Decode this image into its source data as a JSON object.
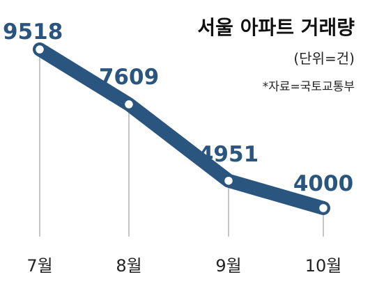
{
  "chart_data": {
    "type": "line",
    "title": "서울 아파트 거래량",
    "unit": "(단위=건)",
    "source": "*자료=국토교통부",
    "categories": [
      "7월",
      "8월",
      "9월",
      "10월"
    ],
    "values": [
      9518,
      7609,
      4951,
      4000
    ],
    "data_labels": [
      "9518",
      "7609",
      "4951",
      "4000"
    ],
    "grid": false,
    "colors": {
      "line": "#2a557f",
      "label": "#2a557f",
      "marker_fill": "#ffffff",
      "guide": "#b3b3b3"
    }
  }
}
